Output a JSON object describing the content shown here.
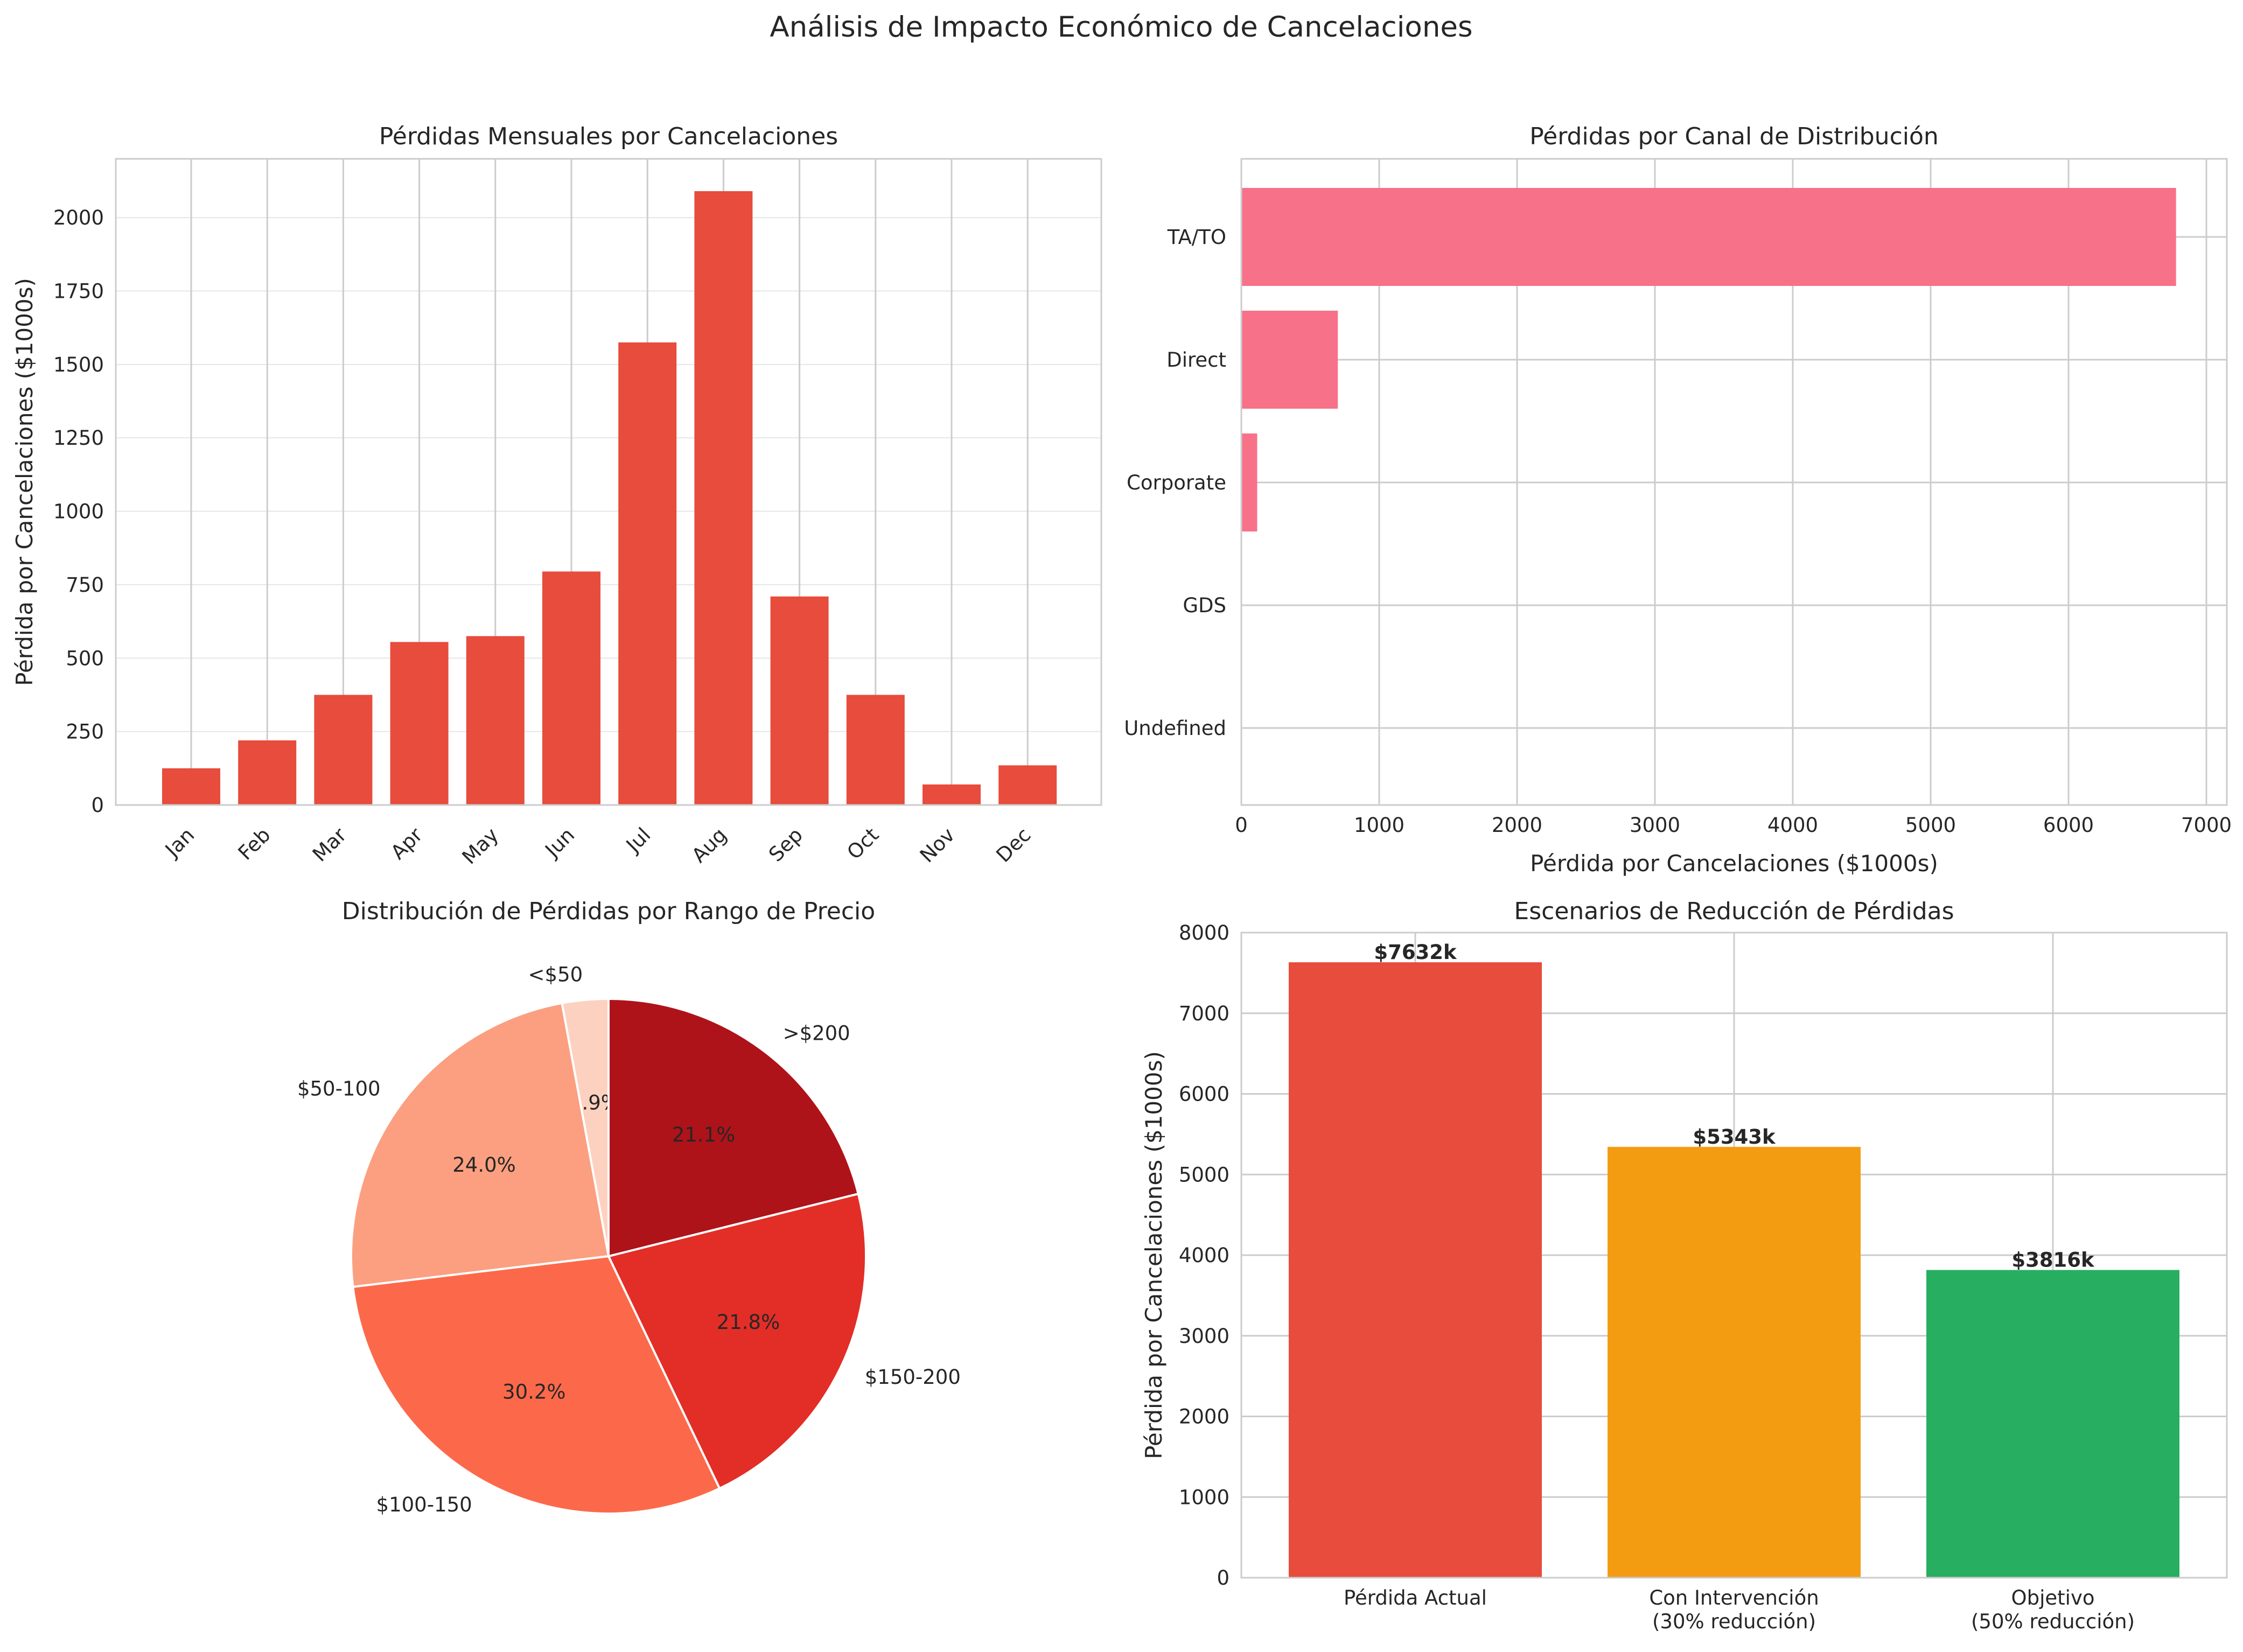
{
  "suptitle": "Análisis de Impacto Económico de Cancelaciones",
  "chart_data": [
    {
      "type": "bar",
      "title": "Pérdidas Mensuales por Cancelaciones",
      "xlabel": "",
      "ylabel": "Pérdida por Cancelaciones ($1000s)",
      "categories": [
        "Jan",
        "Feb",
        "Mar",
        "Apr",
        "May",
        "Jun",
        "Jul",
        "Aug",
        "Sep",
        "Oct",
        "Nov",
        "Dec"
      ],
      "values": [
        125,
        220,
        375,
        555,
        575,
        795,
        1575,
        2090,
        710,
        375,
        70,
        135
      ],
      "ylim": [
        0,
        2200
      ],
      "yticks": [
        0,
        250,
        500,
        750,
        1000,
        1250,
        1500,
        1750,
        2000
      ],
      "color": "#e74c3c",
      "grid": true
    },
    {
      "type": "bar",
      "orientation": "horizontal",
      "title": "Pérdidas por Canal de Distribución",
      "xlabel": "Pérdida por Cancelaciones ($1000s)",
      "ylabel": "",
      "categories": [
        "TA/TO",
        "Direct",
        "Corporate",
        "GDS",
        "Undefined"
      ],
      "values": [
        6780,
        700,
        115,
        0,
        0
      ],
      "xlim": [
        0,
        7100
      ],
      "xticks": [
        0,
        1000,
        2000,
        3000,
        4000,
        5000,
        6000,
        7000
      ],
      "color": "#f77189",
      "grid": true
    },
    {
      "type": "pie",
      "title": "Distribución de Pérdidas por Rango de Precio",
      "labels": [
        "<$50",
        "$50-100",
        "$100-150",
        "$150-200",
        ">$200"
      ],
      "values": [
        2.9,
        24.0,
        30.2,
        21.8,
        21.1
      ],
      "pct_labels": [
        "2.9%",
        "24.0%",
        "30.2%",
        "21.8%",
        "21.1%"
      ],
      "colors": [
        "#fdd1c0",
        "#fb9f80",
        "#fc694a",
        "#e22e27",
        "#ae1319"
      ]
    },
    {
      "type": "bar",
      "title": "Escenarios de Reducción de Pérdidas",
      "xlabel": "",
      "ylabel": "Pérdida por Cancelaciones ($1000s)",
      "categories": [
        [
          "Pérdida Actual"
        ],
        [
          "Con Intervención",
          "(30% reducción)"
        ],
        [
          "Objetivo",
          "(50% reducción)"
        ]
      ],
      "values": [
        7632,
        5343,
        3816
      ],
      "data_labels": [
        "$7632k",
        "$5343k",
        "$3816k"
      ],
      "colors": [
        "#e74c3c",
        "#f39c12",
        "#27ae60"
      ],
      "ylim": [
        0,
        8000
      ],
      "yticks": [
        0,
        1000,
        2000,
        3000,
        4000,
        5000,
        6000,
        7000,
        8000
      ],
      "grid": true
    }
  ]
}
